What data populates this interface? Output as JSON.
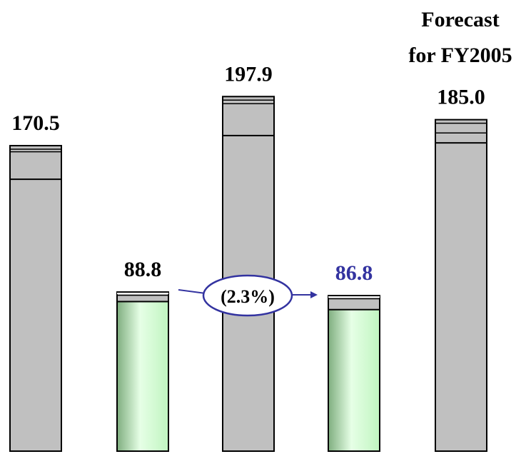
{
  "chart_data": {
    "type": "bar",
    "categories": [
      "",
      "",
      "",
      "",
      ""
    ],
    "values": [
      170.5,
      88.8,
      197.9,
      86.8,
      185.0
    ],
    "value_labels": [
      "170.5",
      "88.8",
      "197.9",
      "86.8",
      "185.0"
    ],
    "segments": [
      {
        "fill": "gray",
        "lower_share": 0.89,
        "upper_share": 0.09
      },
      {
        "fill": "green",
        "lower_share": 0.94,
        "upper_share": 0.04
      },
      {
        "fill": "gray",
        "lower_share": 0.89,
        "upper_share": 0.09
      },
      {
        "fill": "green",
        "lower_share": 0.91,
        "upper_share": 0.07
      },
      {
        "fill": "gray",
        "lower_share": 0.93,
        "upper_share": 0.03
      }
    ],
    "annotations": {
      "forecast_line1": "Forecast",
      "forecast_line2": "for FY2005",
      "change_label": "(2.3%)"
    },
    "title": "",
    "xlabel": "",
    "ylabel": "",
    "ylim": [
      0,
      230
    ],
    "grid": false,
    "legend": "none",
    "colors": {
      "gray_bar": "#c0c0c0",
      "green_light": "#e6ffe6",
      "green_mid": "#c0f5c0",
      "green_dark": "#7fae7f",
      "highlight_label": "#3333a0",
      "outline": "#000000"
    }
  }
}
